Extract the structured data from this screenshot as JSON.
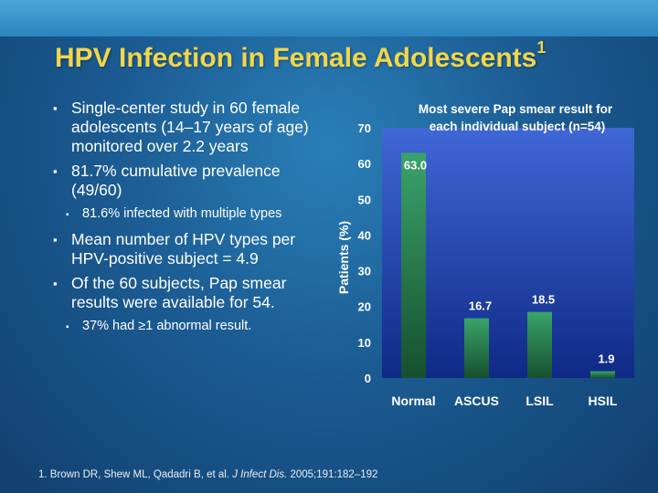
{
  "slide": {
    "title": "HPV Infection in Female Adolescents",
    "title_sup": "1",
    "reference_prefix": "1. Brown DR, Shew ML, Qadadri B, et al. ",
    "reference_journal": "J Infect Dis.",
    "reference_suffix": " 2005;191:182–192"
  },
  "bullets": [
    {
      "level": 1,
      "text": "Single-center study in 60 female adolescents (14–17 years of age) monitored over 2.2 years"
    },
    {
      "level": 1,
      "text": "81.7% cumulative prevalence (49/60)"
    },
    {
      "level": 2,
      "text": "81.6% infected with multiple types"
    },
    {
      "level": 1,
      "text": "Mean number of HPV types per HPV-positive subject = 4.9"
    },
    {
      "level": 1,
      "text": "Of the 60 subjects, Pap smear results were available for 54."
    },
    {
      "level": 2,
      "text": "37% had ≥1 abnormal result."
    }
  ],
  "colors": {
    "title": "#f2d64a",
    "plot_background_top": "#3f67d6",
    "plot_background_bottom": "#0f2a86",
    "bar_top": "#3aa36a",
    "bar_bottom": "#16502f",
    "label_text": "#ffffff"
  },
  "chart_data": {
    "type": "bar",
    "title_line1": "Most severe Pap smear result for",
    "title_line2": "each individual subject (n=54)",
    "xlabel": "",
    "ylabel": "Patients (%)",
    "categories": [
      "Normal",
      "ASCUS",
      "LSIL",
      "HSIL"
    ],
    "values": [
      63.0,
      16.7,
      18.5,
      1.9
    ],
    "data_labels": [
      "63.0",
      "16.7",
      "18.5",
      "1.9"
    ],
    "ylim": [
      0,
      70
    ],
    "yticks": [
      0,
      10,
      20,
      30,
      40,
      50,
      60,
      70
    ],
    "grid": false,
    "legend": "none"
  }
}
